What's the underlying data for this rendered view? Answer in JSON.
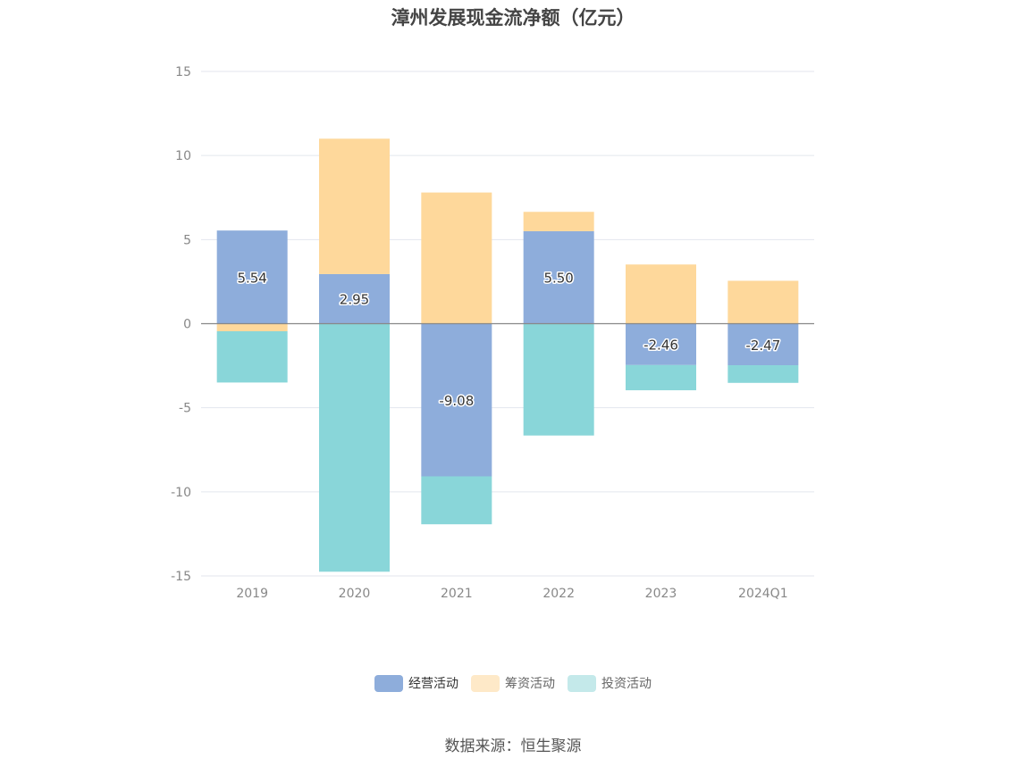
{
  "chart_data": {
    "type": "bar",
    "stacked": true,
    "title": "漳州发展现金流净额（亿元）",
    "categories": [
      "2019",
      "2020",
      "2021",
      "2022",
      "2023",
      "2024Q1"
    ],
    "series": [
      {
        "name": "经营活动",
        "color": "#8eaddb",
        "values": [
          5.54,
          2.95,
          -9.08,
          5.5,
          -2.46,
          -2.47
        ]
      },
      {
        "name": "筹资活动",
        "color": "#fed89b",
        "values": [
          -0.45,
          8.05,
          7.8,
          1.15,
          3.52,
          2.55
        ]
      },
      {
        "name": "投资活动",
        "color": "#89d6d9",
        "values": [
          -3.05,
          -14.75,
          -2.85,
          -6.65,
          -1.5,
          -1.05
        ]
      }
    ],
    "data_labels_series": "经营活动",
    "yticks": [
      "15",
      "10",
      "5",
      "0",
      "-5",
      "-10",
      "-15"
    ],
    "ylim": [
      -15,
      15
    ],
    "legend_colors": [
      "#8eaddb",
      "#fee9c8",
      "#c4e9ea"
    ],
    "source": "数据来源：恒生聚源"
  }
}
